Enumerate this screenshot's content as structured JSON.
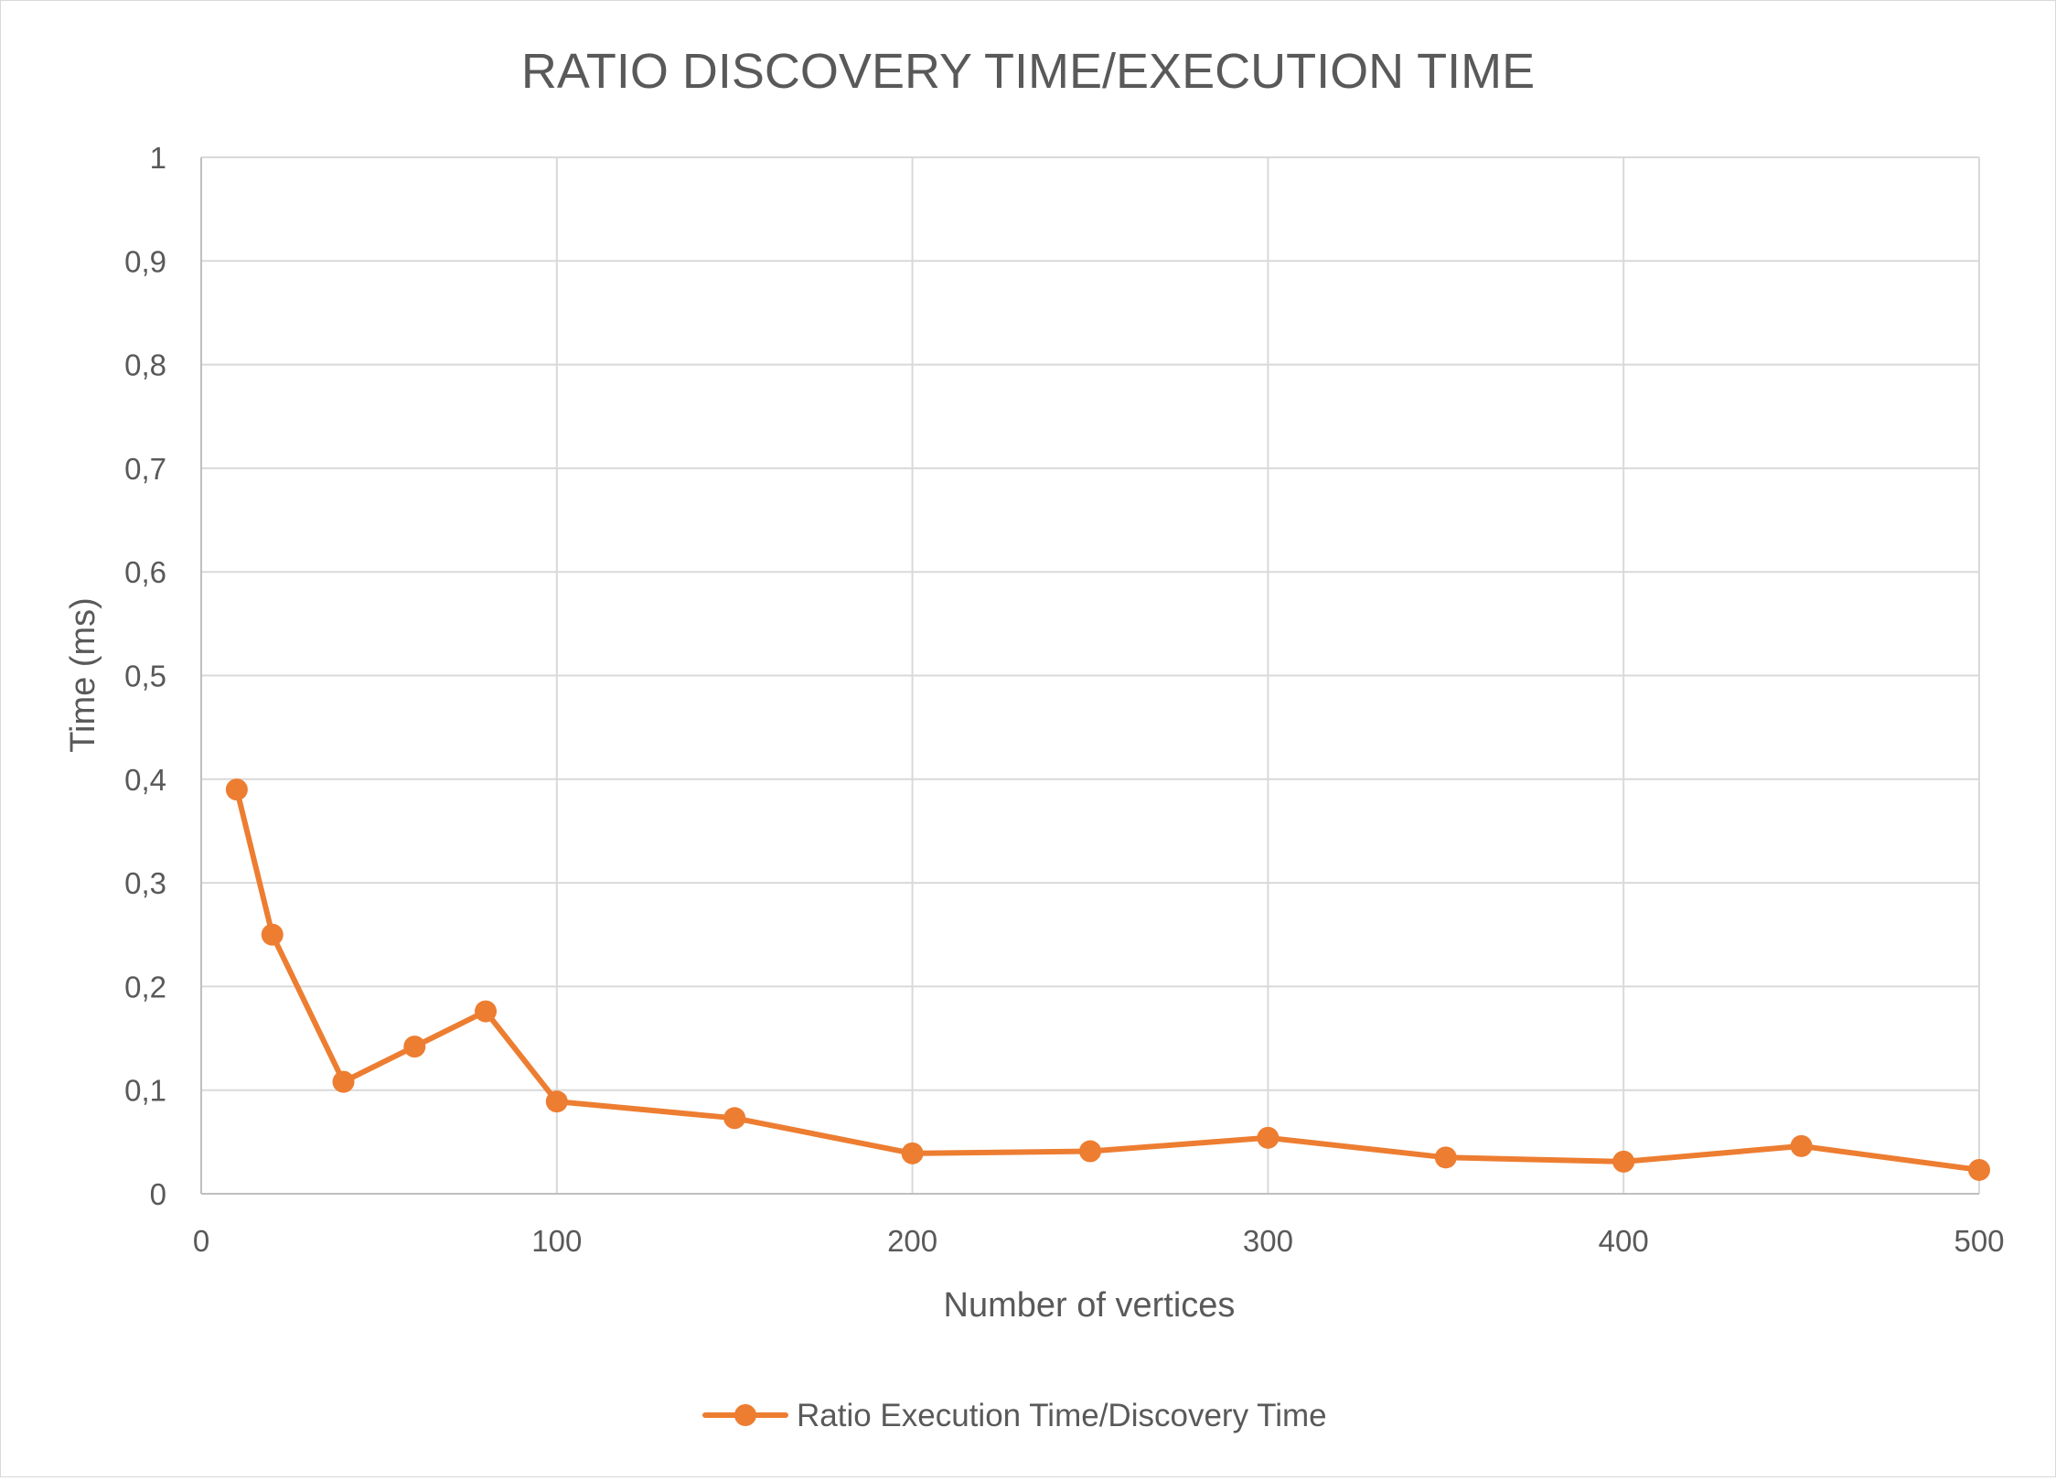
{
  "chart_data": {
    "type": "line",
    "title": "RATIO DISCOVERY TIME/EXECUTION TIME",
    "xlabel": "Number of vertices",
    "ylabel": "Time (ms)",
    "xlim": [
      0,
      500
    ],
    "ylim": [
      0,
      1
    ],
    "x_ticks": [
      "0",
      "100",
      "200",
      "300",
      "400",
      "500"
    ],
    "y_ticks": [
      "0",
      "0,1",
      "0,2",
      "0,3",
      "0,4",
      "0,5",
      "0,6",
      "0,7",
      "0,8",
      "0,9",
      "1"
    ],
    "grid": true,
    "legend_position": "bottom",
    "series": [
      {
        "name": "Ratio Execution Time/Discovery Time",
        "color": "#ed7d31",
        "marker": "circle",
        "x": [
          10,
          20,
          40,
          60,
          80,
          100,
          150,
          200,
          250,
          300,
          350,
          400,
          450,
          500
        ],
        "y": [
          0.39,
          0.25,
          0.108,
          0.142,
          0.176,
          0.089,
          0.073,
          0.039,
          0.041,
          0.054,
          0.035,
          0.031,
          0.046,
          0.023
        ]
      }
    ]
  },
  "colors": {
    "grid": "#d9d9d9",
    "axis": "#bfbfbf",
    "text": "#595959",
    "series": "#ed7d31"
  }
}
